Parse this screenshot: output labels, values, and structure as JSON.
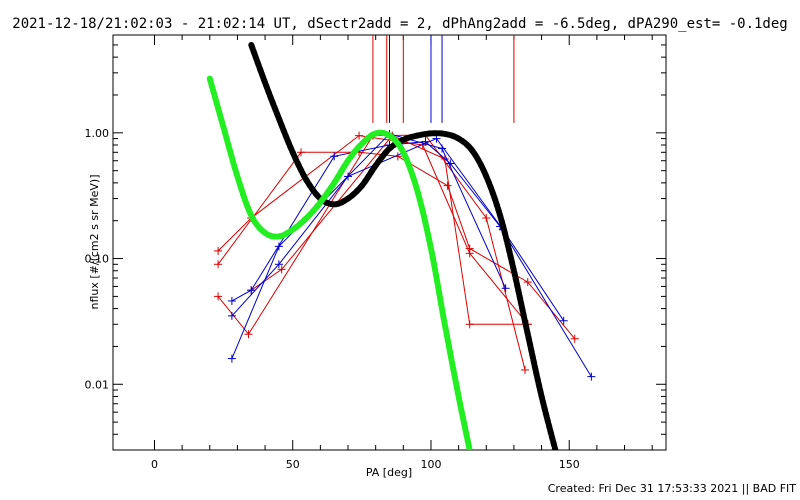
{
  "title": "2021-12-18/21:02:03 - 21:02:14 UT, dSectr2add = 2, dPhAng2add = -6.5deg, dPA290_est= -0.1deg",
  "footer": "Created: Fri Dec 31 17:53:33 2021 || BAD FIT",
  "chart_data": {
    "type": "line",
    "xlabel": "PA [deg]",
    "ylabel": "nflux [#/(cm2 s sr MeV)]",
    "xlim": [
      -15,
      185
    ],
    "ylim": [
      0.003,
      6.0
    ],
    "yscale": "log",
    "xticks": [
      0,
      50,
      100,
      150
    ],
    "yticks": [
      {
        "v": 0.01,
        "label": "0.01"
      },
      {
        "v": 0.1,
        "label": "0.10"
      },
      {
        "v": 1.0,
        "label": "1.00"
      }
    ],
    "colors": {
      "red": "#dd0000",
      "blue": "#0000cc",
      "green": "#22ee22",
      "black": "#000000"
    },
    "vertical_markers": [
      {
        "x": 79,
        "color": "#dd0000"
      },
      {
        "x": 84,
        "color": "#dd0000"
      },
      {
        "x": 85,
        "color": "#0000cc"
      },
      {
        "x": 90,
        "color": "#dd0000"
      },
      {
        "x": 100,
        "color": "#0000cc"
      },
      {
        "x": 104,
        "color": "#0000cc"
      },
      {
        "x": 130,
        "color": "#dd0000"
      }
    ],
    "series": [
      {
        "color": "#dd0000",
        "x": [
          23,
          53,
          74,
          88,
          106,
          114,
          135,
          152
        ],
        "y": [
          0.09,
          0.7,
          0.7,
          0.65,
          0.38,
          0.12,
          0.065,
          0.023
        ]
      },
      {
        "color": "#dd0000",
        "x": [
          23,
          35,
          74,
          97,
          114,
          135
        ],
        "y": [
          0.115,
          0.21,
          0.95,
          0.8,
          0.11,
          0.03
        ]
      },
      {
        "color": "#dd0000",
        "x": [
          23,
          34,
          79,
          98,
          120,
          134
        ],
        "y": [
          0.05,
          0.025,
          0.95,
          0.96,
          0.21,
          0.013
        ]
      },
      {
        "color": "#dd0000",
        "x": [
          35,
          46,
          86,
          105,
          114,
          135
        ],
        "y": [
          0.056,
          0.082,
          0.95,
          0.62,
          0.03,
          0.03
        ]
      },
      {
        "color": "#0000cc",
        "x": [
          28,
          35,
          65,
          85,
          98,
          107,
          125,
          158
        ],
        "y": [
          0.046,
          0.056,
          0.65,
          0.8,
          0.85,
          0.57,
          0.18,
          0.0115
        ]
      },
      {
        "color": "#0000cc",
        "x": [
          28,
          45,
          85,
          104,
          127
        ],
        "y": [
          0.016,
          0.125,
          0.98,
          0.75,
          0.058
        ]
      },
      {
        "color": "#0000cc",
        "x": [
          28,
          45,
          70,
          102,
          126,
          148
        ],
        "y": [
          0.035,
          0.09,
          0.45,
          0.9,
          0.17,
          0.032
        ]
      }
    ],
    "fits": [
      {
        "color": "#000000",
        "x": [
          35,
          40,
          45,
          50,
          55,
          60,
          65,
          70,
          75,
          80,
          85,
          90,
          95,
          100,
          105,
          110,
          115,
          120,
          125,
          130,
          135,
          140,
          145
        ],
        "y": [
          5.0,
          2.5,
          1.3,
          0.7,
          0.42,
          0.3,
          0.27,
          0.3,
          0.38,
          0.55,
          0.75,
          0.88,
          0.95,
          0.99,
          0.98,
          0.9,
          0.72,
          0.45,
          0.22,
          0.08,
          0.025,
          0.008,
          0.003
        ]
      },
      {
        "color": "#22ee22",
        "x": [
          20,
          25,
          30,
          35,
          40,
          45,
          50,
          55,
          60,
          65,
          70,
          75,
          80,
          85,
          90,
          95,
          100,
          105,
          110,
          114
        ],
        "y": [
          2.7,
          1.1,
          0.45,
          0.22,
          0.16,
          0.15,
          0.17,
          0.21,
          0.28,
          0.4,
          0.6,
          0.82,
          0.99,
          0.95,
          0.7,
          0.35,
          0.12,
          0.03,
          0.008,
          0.003
        ]
      }
    ]
  }
}
